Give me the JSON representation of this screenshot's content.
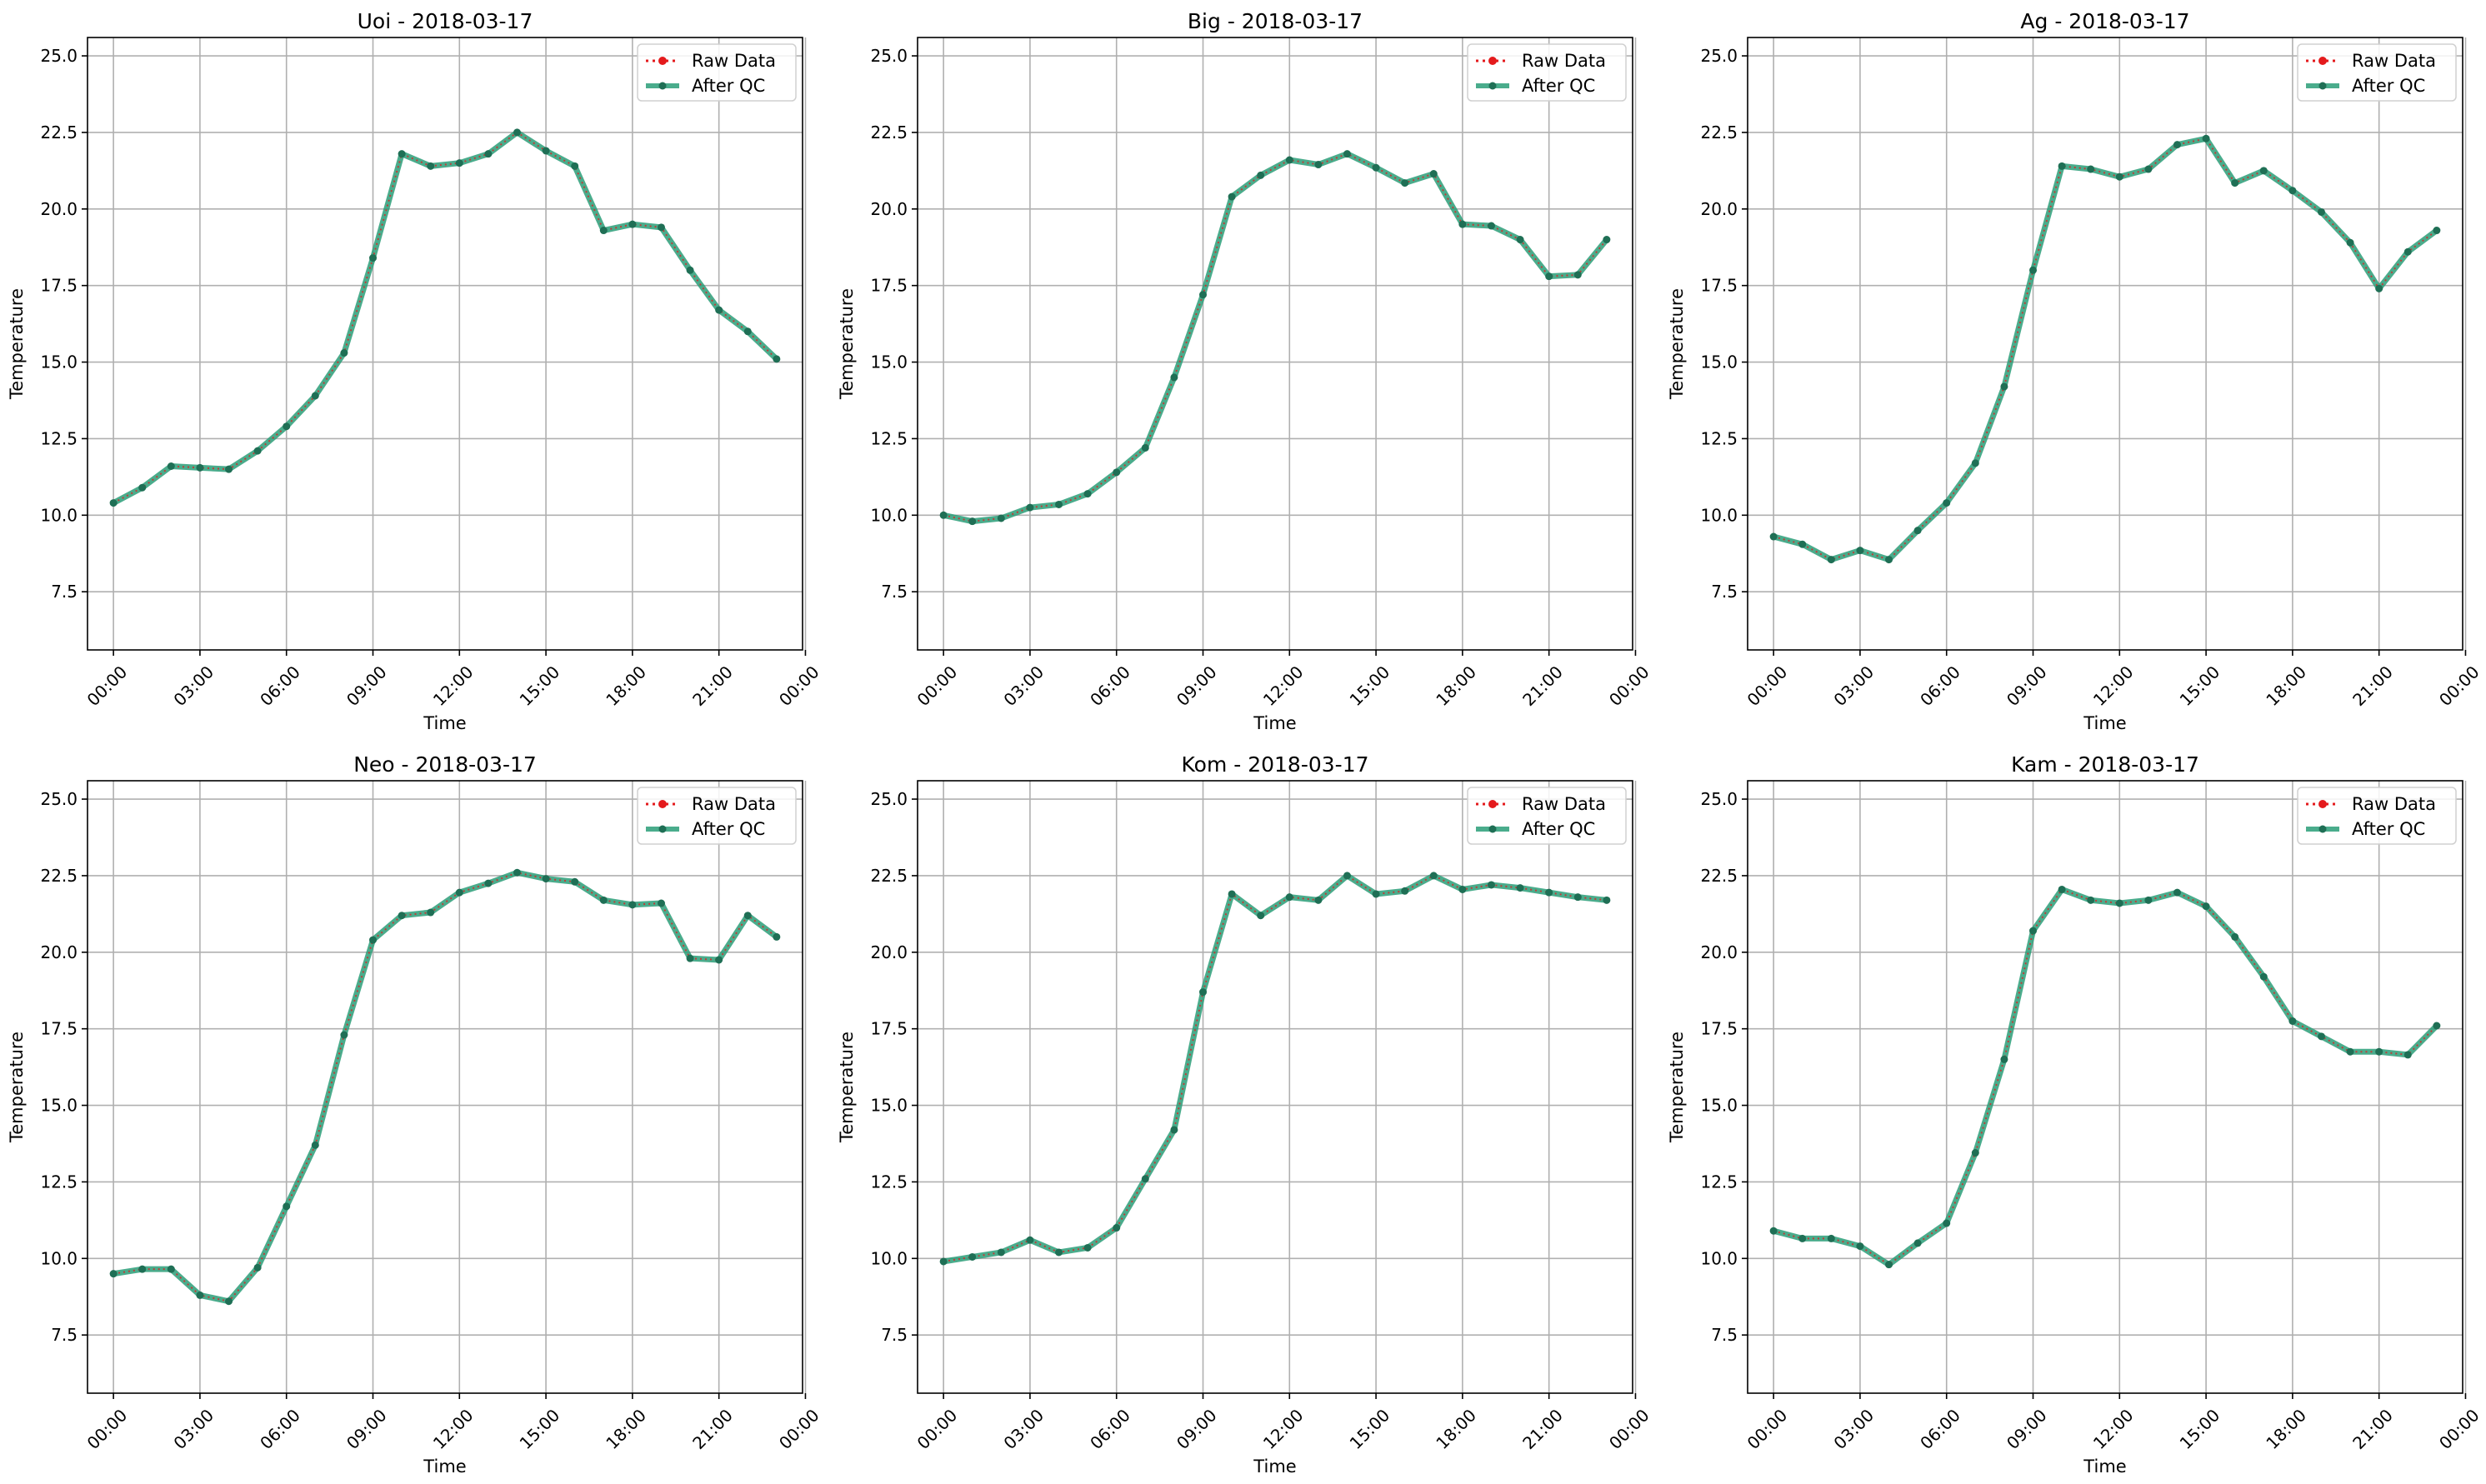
{
  "colors": {
    "raw": "#e41a1c",
    "after_qc": "#2a9d78",
    "grid": "#b0b0b0",
    "axis": "#000000"
  },
  "chart_data": [
    {
      "type": "line",
      "title": "Uoi - 2018-03-17",
      "xlabel": "Time",
      "ylabel": "Temperature",
      "ylim": [
        5.6,
        25.6
      ],
      "xlim": [
        -0.9,
        23.9
      ],
      "x_ticks": [
        "00:00",
        "03:00",
        "06:00",
        "09:00",
        "12:00",
        "15:00",
        "18:00",
        "21:00",
        "00:00"
      ],
      "y_ticks": [
        "7.5",
        "10.0",
        "12.5",
        "15.0",
        "17.5",
        "20.0",
        "22.5",
        "25.0"
      ],
      "grid": true,
      "legend_position": "top-right",
      "series": [
        {
          "name": "Raw Data",
          "style": "dotted",
          "values": [
            10.4,
            10.9,
            11.6,
            11.55,
            11.5,
            12.1,
            12.9,
            13.9,
            15.3,
            18.4,
            21.8,
            21.4,
            21.5,
            21.8,
            22.5,
            21.9,
            21.4,
            19.3,
            19.5,
            19.4,
            18.0,
            16.7,
            16.0,
            15.1
          ]
        },
        {
          "name": "After QC",
          "style": "solid",
          "values": [
            10.4,
            10.9,
            11.6,
            11.55,
            11.5,
            12.1,
            12.9,
            13.9,
            15.3,
            18.4,
            21.8,
            21.4,
            21.5,
            21.8,
            22.5,
            21.9,
            21.4,
            19.3,
            19.5,
            19.4,
            18.0,
            16.7,
            16.0,
            15.1
          ]
        }
      ]
    },
    {
      "type": "line",
      "title": "Big - 2018-03-17",
      "xlabel": "Time",
      "ylabel": "Temperature",
      "ylim": [
        5.6,
        25.6
      ],
      "xlim": [
        -0.9,
        23.9
      ],
      "x_ticks": [
        "00:00",
        "03:00",
        "06:00",
        "09:00",
        "12:00",
        "15:00",
        "18:00",
        "21:00",
        "00:00"
      ],
      "y_ticks": [
        "7.5",
        "10.0",
        "12.5",
        "15.0",
        "17.5",
        "20.0",
        "22.5",
        "25.0"
      ],
      "grid": true,
      "legend_position": "top-right",
      "series": [
        {
          "name": "Raw Data",
          "style": "dotted",
          "values": [
            10.0,
            9.8,
            9.9,
            10.25,
            10.35,
            10.7,
            11.4,
            12.2,
            14.5,
            17.2,
            20.4,
            21.1,
            21.6,
            21.45,
            21.8,
            21.35,
            20.85,
            21.15,
            19.5,
            19.45,
            19.0,
            17.8,
            17.85,
            19.0
          ]
        },
        {
          "name": "After QC",
          "style": "solid",
          "values": [
            10.0,
            9.8,
            9.9,
            10.25,
            10.35,
            10.7,
            11.4,
            12.2,
            14.5,
            17.2,
            20.4,
            21.1,
            21.6,
            21.45,
            21.8,
            21.35,
            20.85,
            21.15,
            19.5,
            19.45,
            19.0,
            17.8,
            17.85,
            19.0
          ]
        }
      ]
    },
    {
      "type": "line",
      "title": "Ag - 2018-03-17",
      "xlabel": "Time",
      "ylabel": "Temperature",
      "ylim": [
        5.6,
        25.6
      ],
      "xlim": [
        -0.9,
        23.9
      ],
      "x_ticks": [
        "00:00",
        "03:00",
        "06:00",
        "09:00",
        "12:00",
        "15:00",
        "18:00",
        "21:00",
        "00:00"
      ],
      "y_ticks": [
        "7.5",
        "10.0",
        "12.5",
        "15.0",
        "17.5",
        "20.0",
        "22.5",
        "25.0"
      ],
      "grid": true,
      "legend_position": "top-right",
      "series": [
        {
          "name": "Raw Data",
          "style": "dotted",
          "values": [
            9.3,
            9.05,
            8.55,
            8.85,
            8.55,
            9.5,
            10.4,
            11.7,
            14.2,
            18.0,
            21.4,
            21.3,
            21.05,
            21.3,
            22.1,
            22.3,
            20.85,
            21.25,
            20.6,
            19.9,
            18.9,
            17.4,
            18.6,
            19.3
          ]
        },
        {
          "name": "After QC",
          "style": "solid",
          "values": [
            9.3,
            9.05,
            8.55,
            8.85,
            8.55,
            9.5,
            10.4,
            11.7,
            14.2,
            18.0,
            21.4,
            21.3,
            21.05,
            21.3,
            22.1,
            22.3,
            20.85,
            21.25,
            20.6,
            19.9,
            18.9,
            17.4,
            18.6,
            19.3
          ]
        }
      ]
    },
    {
      "type": "line",
      "title": "Neo - 2018-03-17",
      "xlabel": "Time",
      "ylabel": "Temperature",
      "ylim": [
        5.6,
        25.6
      ],
      "xlim": [
        -0.9,
        23.9
      ],
      "x_ticks": [
        "00:00",
        "03:00",
        "06:00",
        "09:00",
        "12:00",
        "15:00",
        "18:00",
        "21:00",
        "00:00"
      ],
      "y_ticks": [
        "7.5",
        "10.0",
        "12.5",
        "15.0",
        "17.5",
        "20.0",
        "22.5",
        "25.0"
      ],
      "grid": true,
      "legend_position": "top-right",
      "series": [
        {
          "name": "Raw Data",
          "style": "dotted",
          "values": [
            9.5,
            9.65,
            9.65,
            8.8,
            8.6,
            9.7,
            11.7,
            13.7,
            17.3,
            20.4,
            21.2,
            21.3,
            21.95,
            22.25,
            22.6,
            22.4,
            22.3,
            21.7,
            21.55,
            21.6,
            19.8,
            19.75,
            21.2,
            20.5
          ]
        },
        {
          "name": "After QC",
          "style": "solid",
          "values": [
            9.5,
            9.65,
            9.65,
            8.8,
            8.6,
            9.7,
            11.7,
            13.7,
            17.3,
            20.4,
            21.2,
            21.3,
            21.95,
            22.25,
            22.6,
            22.4,
            22.3,
            21.7,
            21.55,
            21.6,
            19.8,
            19.75,
            21.2,
            20.5
          ]
        }
      ]
    },
    {
      "type": "line",
      "title": "Kom - 2018-03-17",
      "xlabel": "Time",
      "ylabel": "Temperature",
      "ylim": [
        5.6,
        25.6
      ],
      "xlim": [
        -0.9,
        23.9
      ],
      "x_ticks": [
        "00:00",
        "03:00",
        "06:00",
        "09:00",
        "12:00",
        "15:00",
        "18:00",
        "21:00",
        "00:00"
      ],
      "y_ticks": [
        "7.5",
        "10.0",
        "12.5",
        "15.0",
        "17.5",
        "20.0",
        "22.5",
        "25.0"
      ],
      "grid": true,
      "legend_position": "top-right",
      "series": [
        {
          "name": "Raw Data",
          "style": "dotted",
          "values": [
            9.9,
            10.05,
            10.2,
            10.6,
            10.2,
            10.35,
            11.0,
            12.6,
            14.2,
            18.7,
            21.9,
            21.2,
            21.8,
            21.7,
            22.5,
            21.9,
            22.0,
            22.5,
            22.05,
            22.2,
            22.1,
            21.95,
            21.8,
            21.7
          ]
        },
        {
          "name": "After QC",
          "style": "solid",
          "values": [
            9.9,
            10.05,
            10.2,
            10.6,
            10.2,
            10.35,
            11.0,
            12.6,
            14.2,
            18.7,
            21.9,
            21.2,
            21.8,
            21.7,
            22.5,
            21.9,
            22.0,
            22.5,
            22.05,
            22.2,
            22.1,
            21.95,
            21.8,
            21.7
          ]
        }
      ]
    },
    {
      "type": "line",
      "title": "Kam - 2018-03-17",
      "xlabel": "Time",
      "ylabel": "Temperature",
      "ylim": [
        5.6,
        25.6
      ],
      "xlim": [
        -0.9,
        23.9
      ],
      "x_ticks": [
        "00:00",
        "03:00",
        "06:00",
        "09:00",
        "12:00",
        "15:00",
        "18:00",
        "21:00",
        "00:00"
      ],
      "y_ticks": [
        "7.5",
        "10.0",
        "12.5",
        "15.0",
        "17.5",
        "20.0",
        "22.5",
        "25.0"
      ],
      "grid": true,
      "legend_position": "top-right",
      "series": [
        {
          "name": "Raw Data",
          "style": "dotted",
          "values": [
            10.9,
            10.65,
            10.65,
            10.4,
            9.8,
            10.5,
            11.15,
            13.45,
            16.5,
            20.7,
            22.05,
            21.7,
            21.6,
            21.7,
            21.95,
            21.5,
            20.5,
            19.2,
            17.75,
            17.25,
            16.75,
            16.75,
            16.65,
            17.6
          ]
        },
        {
          "name": "After QC",
          "style": "solid",
          "values": [
            10.9,
            10.65,
            10.65,
            10.4,
            9.8,
            10.5,
            11.15,
            13.45,
            16.5,
            20.7,
            22.05,
            21.7,
            21.6,
            21.7,
            21.95,
            21.5,
            20.5,
            19.2,
            17.75,
            17.25,
            16.75,
            16.75,
            16.65,
            17.6
          ]
        }
      ]
    }
  ]
}
